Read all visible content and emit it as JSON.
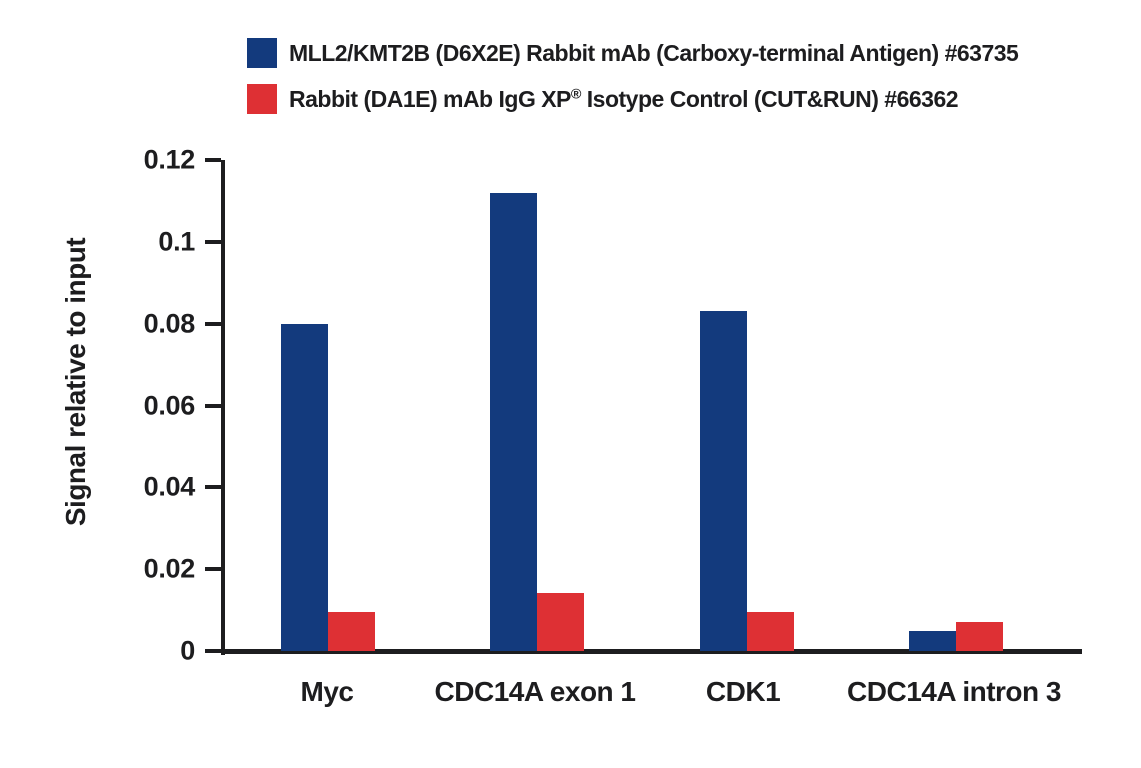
{
  "legend": {
    "items": [
      {
        "label": "MLL2/KMT2B (D6X2E) Rabbit mAb (Carboxy-terminal Antigen) #63735",
        "swatch_color": "#133a7d",
        "swatch_icon": "blue-square"
      },
      {
        "label_pre": "Rabbit (DA1E) mAb IgG XP",
        "label_sup": "®",
        "label_post": " Isotype Control (CUT&RUN) #66362",
        "swatch_color": "#de3034",
        "swatch_icon": "red-square"
      }
    ]
  },
  "chart_data": {
    "type": "bar",
    "title": "",
    "xlabel": "",
    "ylabel": "Signal relative to input",
    "ylim": [
      0,
      0.12
    ],
    "grid": false,
    "legend_position": "top",
    "yticks": [
      {
        "value": 0,
        "label": "0"
      },
      {
        "value": 0.02,
        "label": "0.02"
      },
      {
        "value": 0.04,
        "label": "0.04"
      },
      {
        "value": 0.06,
        "label": "0.06"
      },
      {
        "value": 0.08,
        "label": "0.08"
      },
      {
        "value": 0.1,
        "label": "0.1"
      },
      {
        "value": 0.12,
        "label": "0.12"
      }
    ],
    "categories": [
      "Myc",
      "CDC14A exon 1",
      "CDK1",
      "CDC14A intron 3"
    ],
    "series": [
      {
        "name": "MLL2/KMT2B (D6X2E) Rabbit mAb (Carboxy-terminal Antigen) #63735",
        "color": "#133a7d",
        "values": [
          0.08,
          0.112,
          0.083,
          0.005
        ]
      },
      {
        "name": "Rabbit (DA1E) mAb IgG XP® Isotype Control (CUT&RUN) #66362",
        "color": "#de3034",
        "values": [
          0.0095,
          0.0142,
          0.0095,
          0.007
        ]
      }
    ],
    "colors": {
      "axis": "#1d1d1f",
      "text": "#1d1d1f",
      "background": "#ffffff"
    }
  }
}
